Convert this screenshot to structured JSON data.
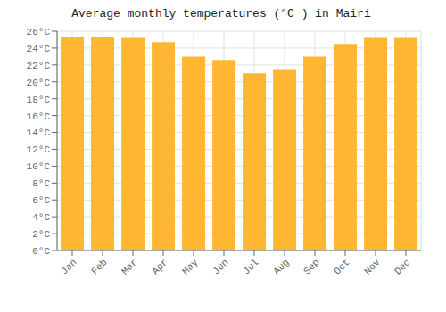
{
  "chart_data": {
    "type": "bar",
    "title": "Average monthly temperatures (°C ) in Mairi",
    "categories": [
      "Jan",
      "Feb",
      "Mar",
      "Apr",
      "May",
      "Jun",
      "Jul",
      "Aug",
      "Sep",
      "Oct",
      "Nov",
      "Dec"
    ],
    "values": [
      25.3,
      25.3,
      25.2,
      24.7,
      23.0,
      22.6,
      21.0,
      21.5,
      23.0,
      24.5,
      25.2,
      25.2
    ],
    "color": "#FFB733",
    "ylim": [
      0,
      26
    ],
    "yticks": [
      {
        "value": 0,
        "label": "0°C"
      },
      {
        "value": 2,
        "label": "2°C"
      },
      {
        "value": 4,
        "label": "4°C"
      },
      {
        "value": 6,
        "label": "6°C"
      },
      {
        "value": 8,
        "label": "8°C"
      },
      {
        "value": 10,
        "label": "10°C"
      },
      {
        "value": 12,
        "label": "12°C"
      },
      {
        "value": 14,
        "label": "14°C"
      },
      {
        "value": 16,
        "label": "16°C"
      },
      {
        "value": 18,
        "label": "18°C"
      },
      {
        "value": 20,
        "label": "20°C"
      },
      {
        "value": 22,
        "label": "22°C"
      },
      {
        "value": 24,
        "label": "24°C"
      },
      {
        "value": 26,
        "label": "26°C"
      }
    ],
    "grid": true
  }
}
